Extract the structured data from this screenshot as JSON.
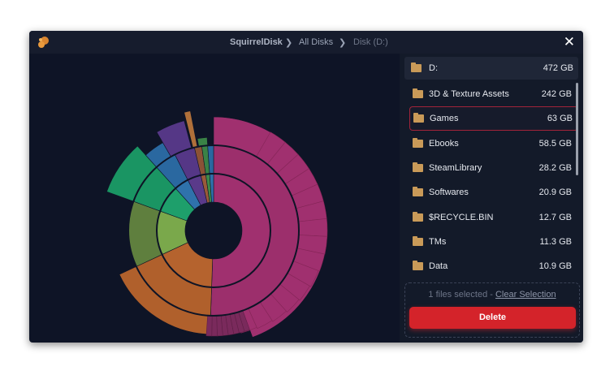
{
  "title_bar": {
    "app": "SquirrelDisk",
    "crumbs": [
      "All Disks",
      "Disk (D:)"
    ]
  },
  "drive": {
    "name": "D:",
    "size": "472 GB"
  },
  "items": [
    {
      "name": "3D & Texture Assets",
      "size": "242 GB"
    },
    {
      "name": "Games",
      "size": "63 GB"
    },
    {
      "name": "Ebooks",
      "size": "58.5 GB"
    },
    {
      "name": "SteamLibrary",
      "size": "28.2 GB"
    },
    {
      "name": "Softwares",
      "size": "20.9 GB"
    },
    {
      "name": "$RECYCLE.BIN",
      "size": "12.7 GB"
    },
    {
      "name": "TMs",
      "size": "11.3 GB"
    },
    {
      "name": "Data",
      "size": "10.9 GB"
    }
  ],
  "selection": {
    "status": "1 files selected",
    "separator": "-",
    "action": "Clear Selection"
  },
  "delete_button": "Delete"
}
